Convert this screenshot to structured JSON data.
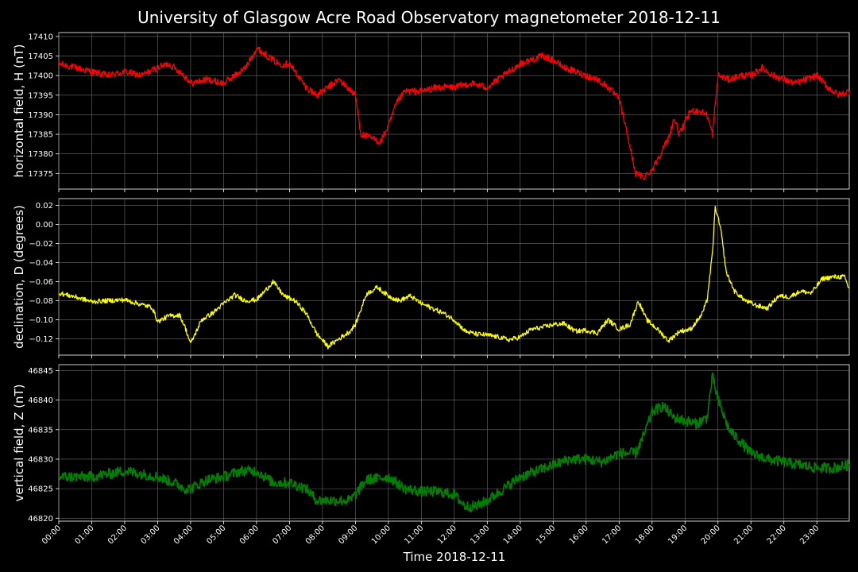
{
  "figure": {
    "title": "University of Glasgow Acre Road Observatory magnetometer 2018-12-11",
    "xlabel": "Time 2018-12-11",
    "background": "#000000",
    "grid_color": "#6b6b6b",
    "text_color": "#ffffff"
  },
  "chart_data": [
    {
      "type": "line",
      "title": "University of Glasgow Acre Road Observatory magnetometer 2018-12-11",
      "ylabel": "horizontal field, H (nT)",
      "xlabel": "",
      "color": "#ff0000",
      "grid": true,
      "xlim": [
        "2018-12-11 00:00",
        "2018-12-11 23:59"
      ],
      "ylim": [
        17371,
        17411
      ],
      "yticks": [
        "17375",
        "17380",
        "17385",
        "17390",
        "17395",
        "17400",
        "17405",
        "17410"
      ],
      "noise": 0.9,
      "series": [
        {
          "x": [
            "00:00",
            "00:30",
            "01:00",
            "01:30",
            "02:00",
            "02:30",
            "03:00",
            "03:20",
            "03:40",
            "03:55",
            "04:00",
            "04:30",
            "05:00",
            "05:20",
            "05:40",
            "06:00",
            "06:20",
            "06:40",
            "07:00",
            "07:30",
            "07:50",
            "08:10",
            "08:30",
            "08:45",
            "09:00",
            "09:10",
            "09:30",
            "09:45",
            "10:00",
            "10:15",
            "10:30",
            "11:00",
            "11:30",
            "12:00",
            "12:30",
            "13:00",
            "13:30",
            "14:00",
            "14:20",
            "14:40",
            "15:00",
            "15:20",
            "15:40",
            "16:00",
            "16:20",
            "16:40",
            "17:00",
            "17:15",
            "17:30",
            "17:45",
            "18:00",
            "18:15",
            "18:30",
            "18:40",
            "18:50",
            "19:00",
            "19:10",
            "19:25",
            "19:40",
            "19:50",
            "20:00",
            "20:20",
            "20:40",
            "21:00",
            "21:20",
            "21:40",
            "22:00",
            "22:20",
            "22:40",
            "23:00",
            "23:20",
            "23:40",
            "23:59"
          ],
          "y": [
            17403,
            17402,
            17401,
            17400,
            17401,
            17400,
            17402,
            17403,
            17401,
            17399,
            17398,
            17399,
            17398,
            17400,
            17402,
            17407,
            17405,
            17403,
            17403,
            17397,
            17395,
            17397,
            17399,
            17397,
            17395,
            17385,
            17384,
            17383,
            17387,
            17393,
            17396,
            17396,
            17397,
            17397,
            17398,
            17397,
            17400,
            17403,
            17404,
            17405,
            17404,
            17402,
            17401,
            17400,
            17399,
            17397,
            17394,
            17385,
            17375,
            17374,
            17376,
            17380,
            17384,
            17389,
            17385,
            17388,
            17391,
            17391,
            17390,
            17385,
            17400,
            17399,
            17400,
            17400,
            17402,
            17400,
            17399,
            17398,
            17399,
            17400,
            17397,
            17395,
            17396
          ]
        }
      ]
    },
    {
      "type": "line",
      "ylabel": "declination, D (degrees)",
      "xlabel": "",
      "color": "#ffff00",
      "grid": true,
      "xlim": [
        "2018-12-11 00:00",
        "2018-12-11 23:59"
      ],
      "ylim": [
        -0.137,
        0.027
      ],
      "yticks": [
        "0.02",
        "0.00",
        "−0.02",
        "−0.04",
        "−0.06",
        "−0.08",
        "−0.10",
        "−0.12"
      ],
      "noise": 0.0025,
      "series": [
        {
          "x": [
            "00:00",
            "00:30",
            "01:00",
            "01:30",
            "02:00",
            "02:30",
            "02:50",
            "03:00",
            "03:20",
            "03:40",
            "03:50",
            "04:00",
            "04:20",
            "04:40",
            "05:00",
            "05:20",
            "05:40",
            "06:00",
            "06:15",
            "06:30",
            "06:50",
            "07:10",
            "07:30",
            "07:50",
            "08:10",
            "08:30",
            "08:50",
            "09:00",
            "09:20",
            "09:40",
            "10:00",
            "10:20",
            "10:40",
            "11:00",
            "11:20",
            "11:40",
            "12:00",
            "12:20",
            "12:40",
            "13:00",
            "13:20",
            "13:40",
            "14:00",
            "14:20",
            "14:40",
            "15:00",
            "15:20",
            "15:40",
            "16:00",
            "16:20",
            "16:40",
            "17:00",
            "17:20",
            "17:35",
            "17:50",
            "18:10",
            "18:30",
            "18:50",
            "19:10",
            "19:30",
            "19:40",
            "19:50",
            "19:55",
            "20:05",
            "20:15",
            "20:30",
            "20:50",
            "21:10",
            "21:30",
            "21:50",
            "22:10",
            "22:30",
            "22:50",
            "23:10",
            "23:30",
            "23:50",
            "23:59"
          ],
          "y": [
            -0.072,
            -0.076,
            -0.081,
            -0.08,
            -0.079,
            -0.084,
            -0.087,
            -0.102,
            -0.096,
            -0.095,
            -0.108,
            -0.125,
            -0.1,
            -0.093,
            -0.083,
            -0.074,
            -0.08,
            -0.079,
            -0.07,
            -0.06,
            -0.075,
            -0.08,
            -0.093,
            -0.115,
            -0.128,
            -0.12,
            -0.112,
            -0.105,
            -0.073,
            -0.066,
            -0.075,
            -0.08,
            -0.075,
            -0.083,
            -0.088,
            -0.093,
            -0.1,
            -0.112,
            -0.115,
            -0.116,
            -0.118,
            -0.121,
            -0.118,
            -0.11,
            -0.108,
            -0.105,
            -0.104,
            -0.112,
            -0.111,
            -0.114,
            -0.1,
            -0.11,
            -0.105,
            -0.08,
            -0.1,
            -0.11,
            -0.122,
            -0.112,
            -0.11,
            -0.095,
            -0.08,
            -0.03,
            0.018,
            -0.005,
            -0.05,
            -0.07,
            -0.08,
            -0.085,
            -0.088,
            -0.075,
            -0.076,
            -0.07,
            -0.072,
            -0.057,
            -0.055,
            -0.055,
            -0.068
          ]
        }
      ]
    },
    {
      "type": "line",
      "ylabel": "vertical field, Z (nT)",
      "xlabel": "Time 2018-12-11",
      "color": "#008000",
      "grid": true,
      "xlim": [
        "2018-12-11 00:00",
        "2018-12-11 23:59"
      ],
      "ylim": [
        46819.5,
        46846
      ],
      "yticks": [
        "46820",
        "46825",
        "46830",
        "46835",
        "46840",
        "46845"
      ],
      "xticks": [
        "00:00",
        "01:00",
        "02:00",
        "03:00",
        "04:00",
        "05:00",
        "06:00",
        "07:00",
        "08:00",
        "09:00",
        "10:00",
        "11:00",
        "12:00",
        "13:00",
        "14:00",
        "15:00",
        "16:00",
        "17:00",
        "18:00",
        "19:00",
        "20:00",
        "21:00",
        "22:00",
        "23:00"
      ],
      "noise": 0.9,
      "series": [
        {
          "x": [
            "00:00",
            "01:00",
            "02:00",
            "03:00",
            "03:30",
            "03:50",
            "04:00",
            "04:30",
            "05:00",
            "05:30",
            "06:00",
            "06:15",
            "06:30",
            "07:00",
            "07:30",
            "07:50",
            "08:20",
            "08:50",
            "09:00",
            "09:20",
            "10:00",
            "10:30",
            "11:00",
            "11:30",
            "12:00",
            "12:20",
            "12:40",
            "13:00",
            "13:30",
            "14:00",
            "14:30",
            "15:00",
            "15:30",
            "16:00",
            "16:30",
            "17:00",
            "17:30",
            "17:45",
            "18:00",
            "18:20",
            "18:40",
            "19:00",
            "19:20",
            "19:40",
            "19:50",
            "20:00",
            "20:20",
            "20:40",
            "21:00",
            "21:30",
            "22:00",
            "22:30",
            "23:00",
            "23:30",
            "23:59"
          ],
          "y": [
            46827,
            46827,
            46828,
            46827,
            46826,
            46825,
            46825,
            46826.5,
            46827,
            46828,
            46828,
            46827,
            46826,
            46826,
            46825,
            46823,
            46823,
            46823,
            46824,
            46826.5,
            46827,
            46825,
            46824.5,
            46824.5,
            46824,
            46822,
            46822,
            46823,
            46825,
            46827,
            46828,
            46829,
            46830,
            46830,
            46829.5,
            46831,
            46831,
            46834,
            46838,
            46839,
            46837,
            46836.5,
            46836,
            46837,
            46844,
            46840,
            46835,
            46833,
            46831,
            46830,
            46829.5,
            46829,
            46828.5,
            46828.5,
            46829
          ]
        }
      ]
    }
  ]
}
